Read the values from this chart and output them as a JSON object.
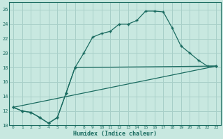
{
  "xlabel": "Humidex (Indice chaleur)",
  "ylabel": "",
  "bg_color": "#c8e8e0",
  "line_color": "#1a6b60",
  "grid_color": "#a8cfc8",
  "xlim": [
    -0.5,
    23.5
  ],
  "ylim": [
    10,
    27
  ],
  "xticks": [
    0,
    1,
    2,
    3,
    4,
    5,
    6,
    7,
    8,
    9,
    10,
    11,
    12,
    13,
    14,
    15,
    16,
    17,
    18,
    19,
    20,
    21,
    22,
    23
  ],
  "yticks": [
    10,
    12,
    14,
    16,
    18,
    20,
    22,
    24,
    26
  ],
  "line1_x": [
    0,
    1,
    2,
    3,
    4,
    5,
    6,
    7,
    8,
    9,
    10,
    11,
    12,
    13,
    14,
    15,
    16,
    17,
    18,
    19,
    20,
    21,
    22,
    23
  ],
  "line1_y": [
    12.5,
    12.0,
    11.8,
    11.1,
    10.3,
    11.1,
    14.5,
    18.0,
    20.0,
    22.2,
    22.7,
    23.0,
    24.0,
    24.0,
    24.5,
    25.8,
    25.8,
    25.7,
    23.5,
    21.0,
    20.0,
    19.0,
    18.2,
    18.2
  ],
  "line2_x": [
    0,
    1,
    2,
    3,
    4,
    5,
    6,
    7,
    23
  ],
  "line2_y": [
    12.5,
    12.0,
    11.8,
    11.1,
    10.3,
    11.1,
    14.5,
    18.0,
    18.2
  ],
  "line3_x": [
    0,
    23
  ],
  "line3_y": [
    12.5,
    18.2
  ]
}
